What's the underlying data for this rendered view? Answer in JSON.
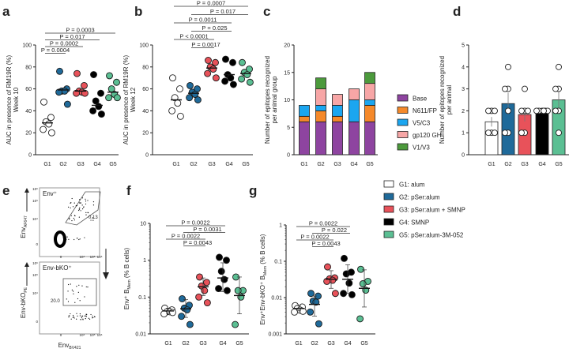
{
  "groups": [
    "G1",
    "G2",
    "G3",
    "G4",
    "G5"
  ],
  "group_colors": {
    "G1": "#ffffff",
    "G2": "#1f6a9a",
    "G3": "#e8525a",
    "G4": "#000000",
    "G5": "#5bbf93"
  },
  "legend": [
    {
      "label": "G1: alum",
      "color": "#ffffff"
    },
    {
      "label": "G2: pSer:alum",
      "color": "#1f6a9a"
    },
    {
      "label": "G3: pSer:alum + SMNP",
      "color": "#e8525a"
    },
    {
      "label": "G4: SMNP",
      "color": "#000000"
    },
    {
      "label": "G5: pSer:alum-3M-052",
      "color": "#5bbf93"
    }
  ],
  "chart_data": [
    {
      "panel": "a",
      "type": "scatter",
      "ylabel": "AUC in presence of RM19R (%)",
      "ylabel2": "Week 10",
      "ylim": [
        0,
        100
      ],
      "yticks": [
        "0",
        "20",
        "40",
        "60",
        "80",
        "100"
      ],
      "scale": "linear",
      "points": {
        "G1": [
          48,
          34,
          30,
          28,
          23,
          20
        ],
        "G2": [
          76,
          60,
          58,
          58,
          57,
          46
        ],
        "G3": [
          74,
          63,
          58,
          57,
          56,
          56
        ],
        "G4": [
          73,
          56,
          49,
          44,
          40,
          37
        ],
        "G5": [
          72,
          66,
          60,
          55,
          52,
          52
        ]
      },
      "means": {
        "G1": 29,
        "G2": 59,
        "G3": 58,
        "G4": 45,
        "G5": 57
      },
      "comparisons": [
        {
          "a": "G1",
          "b": "G5",
          "p": "P = 0.0003"
        },
        {
          "a": "G1",
          "b": "G4",
          "p": "P = 0.017"
        },
        {
          "a": "G1",
          "b": "G3",
          "p": "P = 0.0002"
        },
        {
          "a": "G1",
          "b": "G2",
          "p": "P = 0.0004"
        }
      ]
    },
    {
      "panel": "b",
      "type": "scatter",
      "ylabel": "AUC in presence of RM19R (%)",
      "ylabel2": "Week 12",
      "ylim": [
        0,
        100
      ],
      "yticks": [
        "0",
        "20",
        "40",
        "60",
        "80",
        "100"
      ],
      "scale": "linear",
      "points": {
        "G1": [
          70,
          60,
          52,
          47,
          40,
          35
        ],
        "G2": [
          63,
          60,
          57,
          55,
          52,
          50
        ],
        "G3": [
          86,
          84,
          80,
          78,
          74,
          70
        ],
        "G4": [
          87,
          84,
          73,
          70,
          67,
          64
        ],
        "G5": [
          84,
          78,
          75,
          73,
          69,
          66
        ]
      },
      "means": {
        "G1": 50,
        "G2": 56,
        "G3": 79,
        "G4": 73,
        "G5": 74
      },
      "comparisons": [
        {
          "a": "G1",
          "b": "G5",
          "p": "P = 0.0007"
        },
        {
          "a": "G2",
          "b": "G5",
          "p": "P = 0.017"
        },
        {
          "a": "G1",
          "b": "G4",
          "p": "P = 0.0011"
        },
        {
          "a": "G2",
          "b": "G4",
          "p": "P = 0.025"
        },
        {
          "a": "G1",
          "b": "G3",
          "p": "P < 0.0001"
        },
        {
          "a": "G2",
          "b": "G3",
          "p": "P = 0.0017"
        }
      ]
    },
    {
      "panel": "c",
      "type": "bar",
      "stacked": true,
      "ylabel": "Number of epitopes recognized",
      "ylabel2": "per animal group",
      "ylim": [
        0,
        20
      ],
      "yticks": [
        "0",
        "5",
        "10",
        "15",
        "20"
      ],
      "series": [
        {
          "name": "Base",
          "color": "#8e44a0",
          "values": [
            6,
            6,
            6,
            6,
            6
          ]
        },
        {
          "name": "N611/FP",
          "color": "#f5892a",
          "values": [
            1,
            2,
            1,
            0,
            3
          ]
        },
        {
          "name": "V5/C3",
          "color": "#1ba6f0",
          "values": [
            2,
            1,
            2,
            4,
            1
          ]
        },
        {
          "name": "gp120 GH",
          "color": "#f7a6a6",
          "values": [
            0,
            3,
            2,
            2,
            3
          ]
        },
        {
          "name": "V1/V3",
          "color": "#4c9a3c",
          "values": [
            0,
            2,
            0,
            0,
            2
          ]
        }
      ]
    },
    {
      "panel": "d",
      "type": "bar",
      "ylabel": "Number of epitopes recognized",
      "ylabel2": "per animal",
      "ylim": [
        0,
        5
      ],
      "yticks": [
        "0",
        "1",
        "2",
        "3",
        "4",
        "5"
      ],
      "values": {
        "G1": 1.5,
        "G2": 2.33,
        "G3": 1.83,
        "G4": 2,
        "G5": 2.5
      },
      "sem": {
        "G1": 0.22,
        "G2": 0.49,
        "G3": 0.31,
        "G4": 0,
        "G5": 0.43
      },
      "points": {
        "G1": [
          2,
          2,
          1,
          1,
          1,
          2
        ],
        "G2": [
          4,
          3,
          3,
          2,
          1,
          1
        ],
        "G3": [
          3,
          2,
          2,
          2,
          1,
          1
        ],
        "G4": [
          2,
          2,
          2,
          2,
          2,
          2
        ],
        "G5": [
          4,
          3,
          3,
          2,
          2,
          1
        ]
      }
    },
    {
      "panel": "f",
      "type": "scatter",
      "scale": "log",
      "ylabel": "Env⁺ B",
      "ylabel_sub": "Mem",
      "ylabel_tail": " (% B cells)",
      "ylim": [
        0.01,
        10
      ],
      "yticks": [
        "0.01",
        "0.1",
        "1",
        "10"
      ],
      "points": {
        "G1": [
          0.05,
          0.045,
          0.04,
          0.04,
          0.035,
          0.038
        ],
        "G2": [
          0.09,
          0.06,
          0.05,
          0.045,
          0.03,
          0.018
        ],
        "G3": [
          0.35,
          0.25,
          0.2,
          0.15,
          0.1,
          0.07
        ],
        "G4": [
          1.2,
          1.0,
          0.5,
          0.3,
          0.17,
          0.15
        ],
        "G5": [
          0.35,
          0.15,
          0.15,
          0.1,
          0.018
        ]
      },
      "means": {
        "G1": 0.042,
        "G2": 0.048,
        "G3": 0.19,
        "G4": 0.33,
        "G5": 0.11
      },
      "sd": {
        "G1": [
          0.036,
          0.05
        ],
        "G2": [
          0.028,
          0.085
        ],
        "G3": [
          0.11,
          0.33
        ],
        "G4": [
          0.14,
          0.85
        ],
        "G5": [
          0.035,
          0.35
        ]
      },
      "comparisons": [
        {
          "a": "G1",
          "b": "G4",
          "p": "P = 0.0022"
        },
        {
          "a": "G2",
          "b": "G4",
          "p": "P = 0.0031"
        },
        {
          "a": "G1",
          "b": "G3",
          "p": "P = 0.0022"
        },
        {
          "a": "G2",
          "b": "G3",
          "p": "P = 0.0043"
        }
      ]
    },
    {
      "panel": "g",
      "type": "scatter",
      "scale": "log",
      "ylabel": "Env⁺Env-bKO⁺ B",
      "ylabel_sub": "Mem",
      "ylabel_tail": " (% B cells)",
      "ylim": [
        0.001,
        1
      ],
      "yticks": [
        "0.001",
        "0.01",
        "0.1",
        "1"
      ],
      "points": {
        "G1": [
          0.006,
          0.0055,
          0.005,
          0.0045,
          0.004,
          0.0042
        ],
        "G2": [
          0.013,
          0.011,
          0.008,
          0.0075,
          0.004,
          0.0019
        ],
        "G3": [
          0.07,
          0.035,
          0.033,
          0.03,
          0.028,
          0.013
        ],
        "G4": [
          0.12,
          0.05,
          0.045,
          0.025,
          0.013,
          0.012
        ],
        "G5": [
          0.06,
          0.028,
          0.024,
          0.016,
          0.0026
        ]
      },
      "means": {
        "G1": 0.005,
        "G2": 0.0065,
        "G3": 0.032,
        "G4": 0.032,
        "G5": 0.018
      },
      "sd": {
        "G1": [
          0.0043,
          0.006
        ],
        "G2": [
          0.0031,
          0.011
        ],
        "G3": [
          0.018,
          0.055
        ],
        "G4": [
          0.013,
          0.08
        ],
        "G5": [
          0.0055,
          0.058
        ]
      },
      "comparisons": [
        {
          "a": "G1",
          "b": "G4",
          "p": "P = 0.0022"
        },
        {
          "a": "G2",
          "b": "G4",
          "p": "P = 0.022"
        },
        {
          "a": "G1",
          "b": "G3",
          "p": "P = 0.0022"
        },
        {
          "a": "G2",
          "b": "G3",
          "p": "P = 0.0043"
        }
      ]
    }
  ],
  "flow": {
    "panel": "e",
    "top": {
      "gate": "Env⁺",
      "gate_value": "0.13",
      "ylabel": "Env",
      "ylabel_sub": "AF647",
      "ticks": [
        "0",
        "10⁴",
        "10⁵",
        "10⁶"
      ]
    },
    "bottom": {
      "gate": "Env-bKO⁺",
      "gate_value": "20.0",
      "ylabel": "Env-bKO",
      "ylabel_sub": "PE",
      "ticks": [
        "0",
        "10⁴",
        "10⁵",
        "10⁶"
      ]
    },
    "xlabel": "Env",
    "xlabel_sub": "BV421"
  },
  "panel_letters": [
    "a",
    "b",
    "c",
    "d",
    "e",
    "f",
    "g"
  ]
}
